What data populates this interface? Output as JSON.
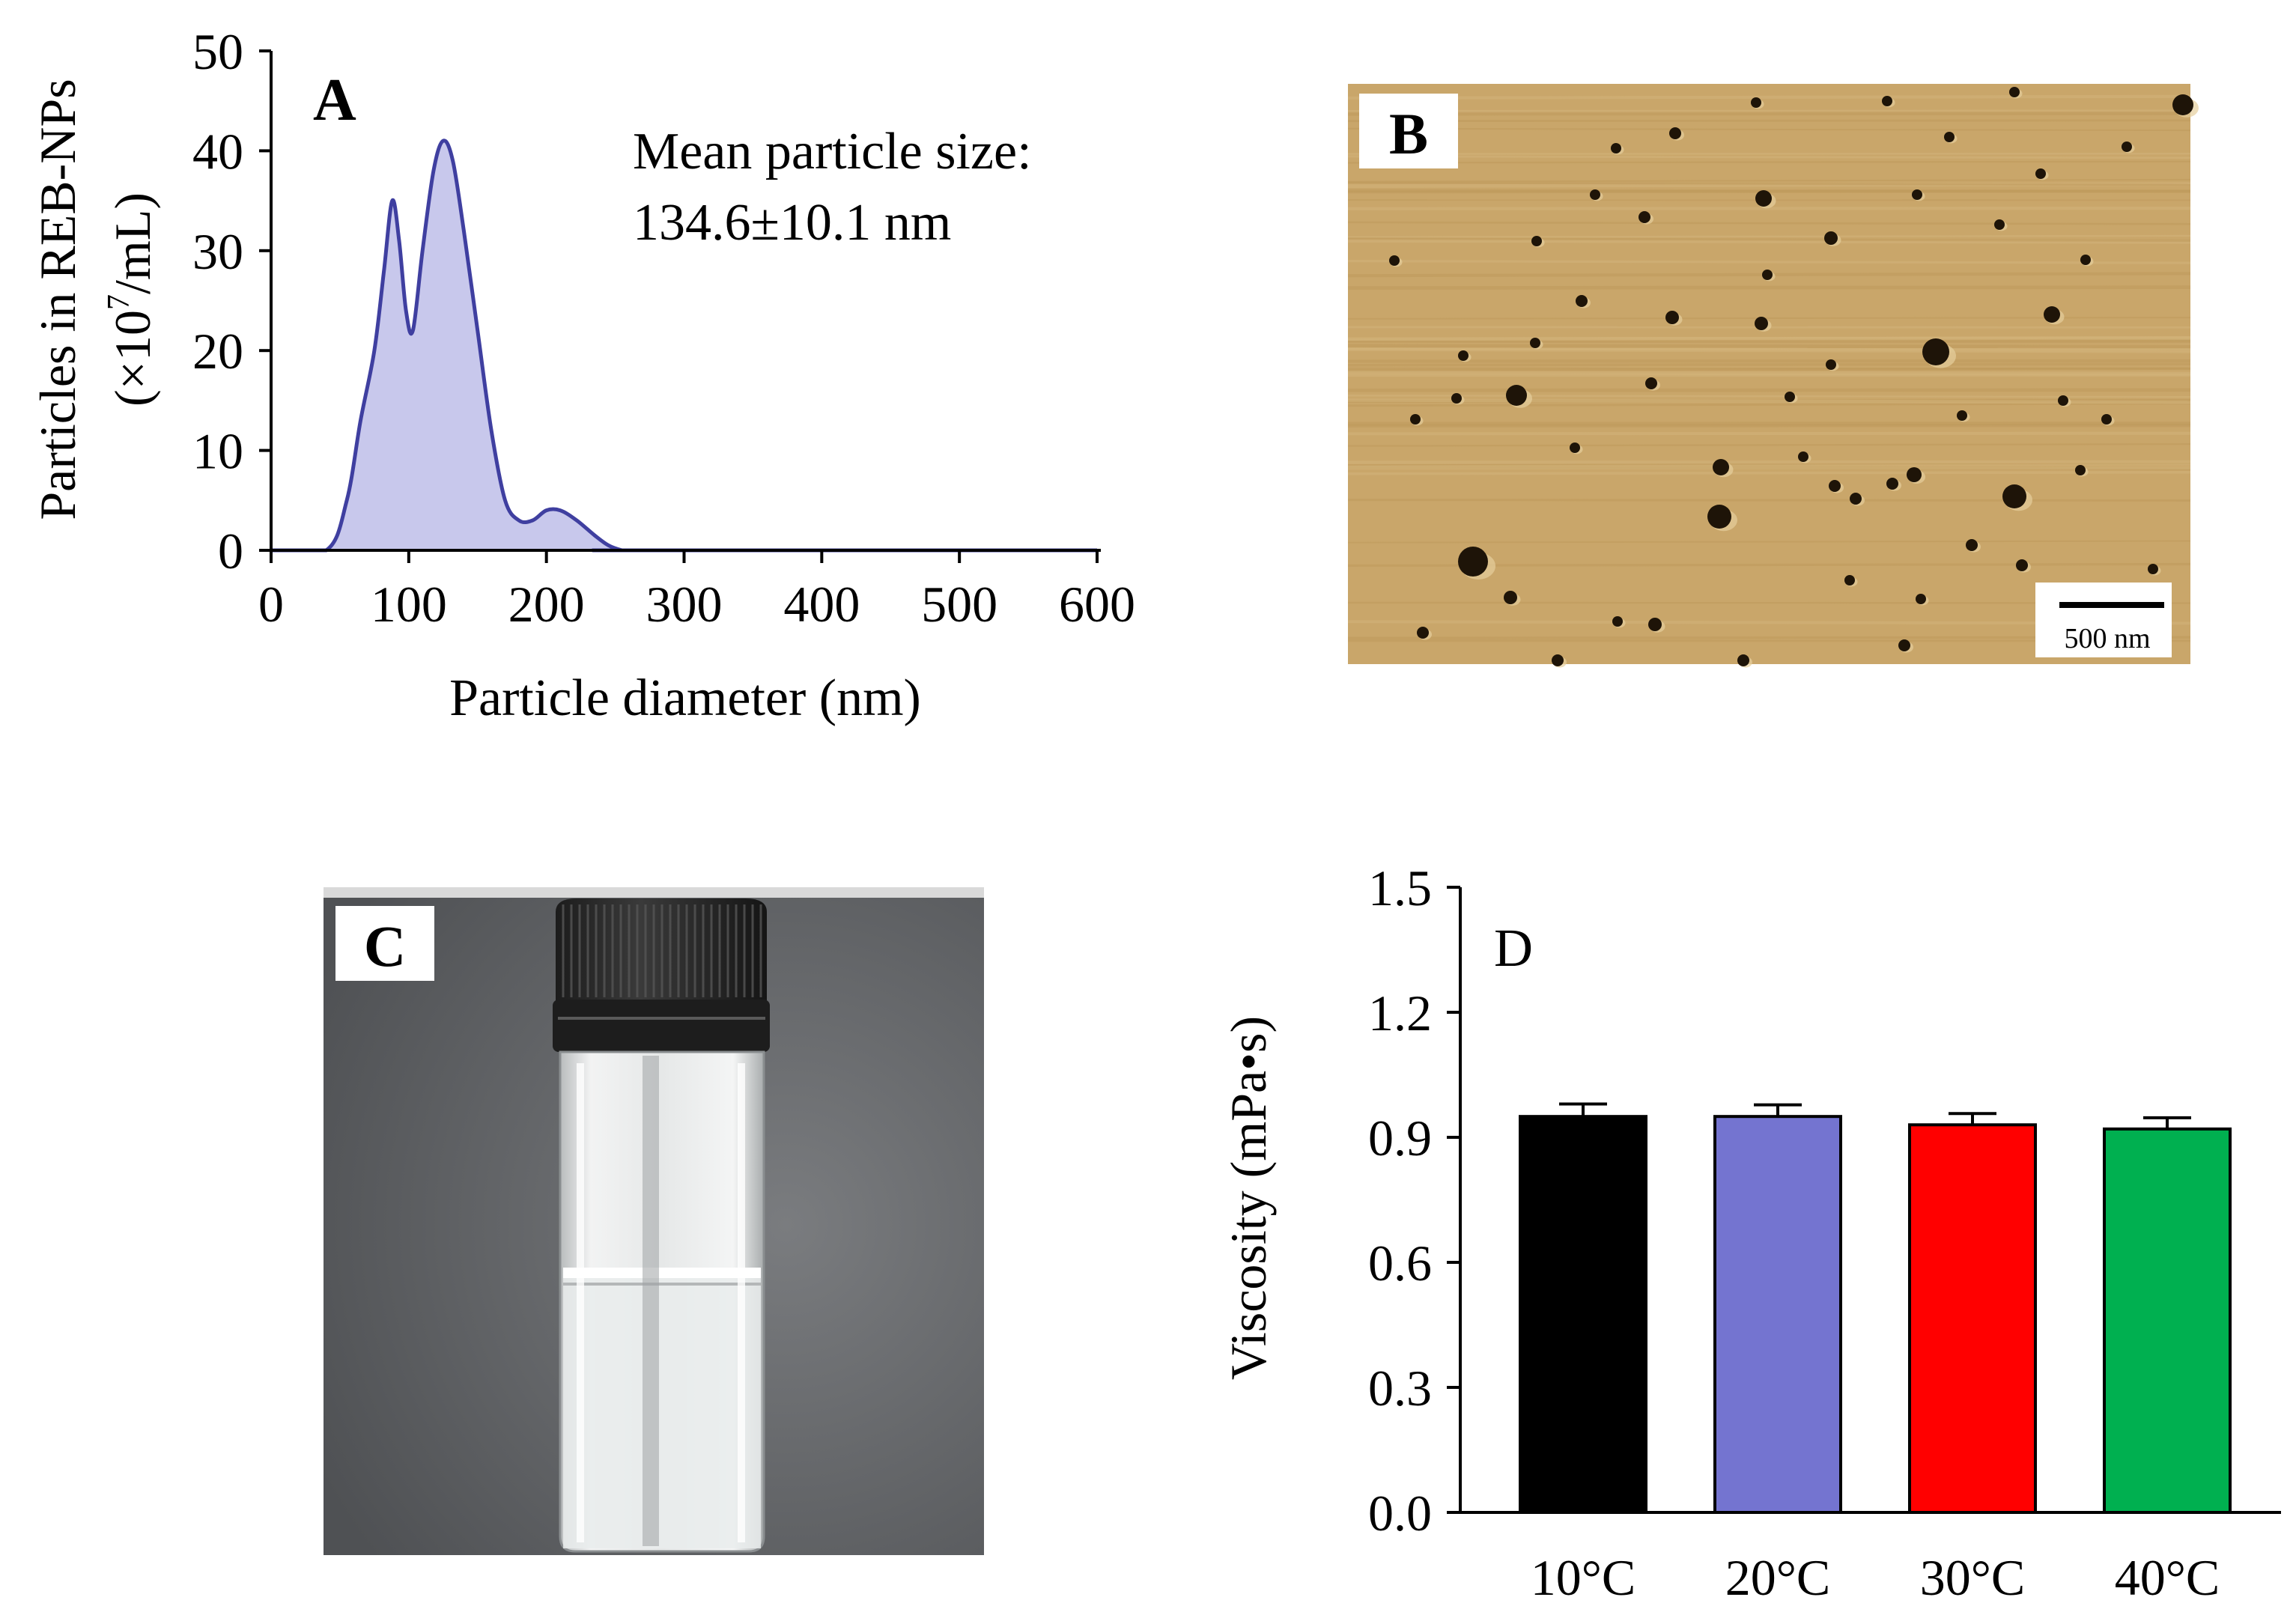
{
  "colors": {
    "curve_line": "#3f3fa0",
    "curve_fill": "#c8c8ec",
    "afm_bg": "#c9a66a",
    "bar_10C": "#000000",
    "bar_20C": "#7474d0",
    "bar_30C": "#ff0000",
    "bar_40C": "#00b050"
  },
  "panel_a": {
    "letter": "A",
    "annotation_line1": "Mean particle size:",
    "annotation_line2": "134.6±10.1  nm"
  },
  "panel_b": {
    "letter": "B",
    "scale_bar_label": "500 nm"
  },
  "panel_c": {
    "letter": "C"
  },
  "panel_d": {
    "letter": "D"
  },
  "chart_data": [
    {
      "panel": "A",
      "type": "area",
      "xlabel": "Particle diameter (nm)",
      "ylabel_line1": "Particles in REB-NPs",
      "ylabel_line2_prefix": "(×10",
      "ylabel_line2_exp": "7",
      "ylabel_line2_suffix": "/mL)",
      "xlim": [
        0,
        600
      ],
      "ylim": [
        0,
        50
      ],
      "xticks": [
        0,
        100,
        200,
        300,
        400,
        500,
        600
      ],
      "yticks": [
        0,
        10,
        20,
        30,
        40,
        50
      ],
      "x": [
        0,
        40,
        55,
        65,
        75,
        82,
        88,
        93,
        98,
        103,
        110,
        118,
        125,
        132,
        140,
        150,
        160,
        170,
        180,
        190,
        200,
        210,
        222,
        235,
        245,
        255,
        260,
        600
      ],
      "y": [
        0,
        0,
        5,
        13,
        20,
        28,
        35,
        31,
        24,
        22,
        30,
        38,
        41,
        39,
        32,
        22,
        12,
        5,
        3,
        3,
        4,
        4,
        3,
        1.5,
        0.5,
        0,
        0,
        0
      ]
    },
    {
      "panel": "D",
      "type": "bar",
      "categories": [
        "10°C",
        "20°C",
        "30°C",
        "40°C"
      ],
      "values": [
        0.95,
        0.95,
        0.93,
        0.92
      ],
      "errors": [
        0.03,
        0.028,
        0.027,
        0.027
      ],
      "ylabel": "Viscosity (mPa•s)",
      "xlabel": "",
      "ylim": [
        0,
        1.5
      ],
      "yticks": [
        "0.0",
        "0.3",
        "0.6",
        "0.9",
        "1.2",
        "1.5"
      ]
    }
  ]
}
